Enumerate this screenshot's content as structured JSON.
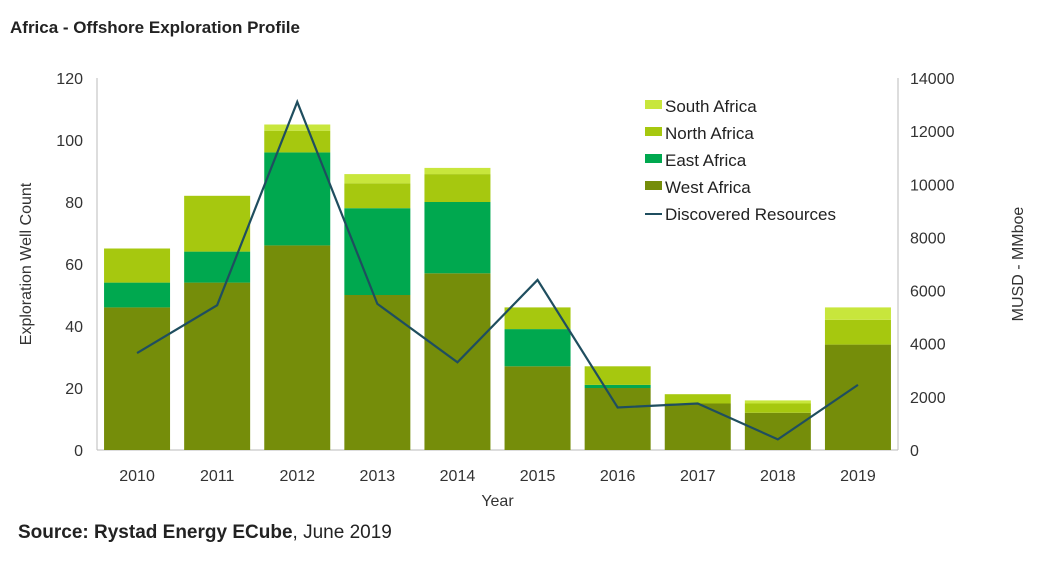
{
  "chart_data": {
    "type": "bar",
    "stacked": true,
    "title": "Africa - Offshore Exploration Profile",
    "source_bold": "Source: Rystad Energy ECube",
    "source_rest": ", June 2019",
    "xlabel": "Year",
    "ylabel": "Exploration Well Count",
    "y2label": "MUSD - MMboe",
    "ylim": [
      0,
      120
    ],
    "y2lim": [
      0,
      14000
    ],
    "yticks": [
      0,
      20,
      40,
      60,
      80,
      100,
      120
    ],
    "y2ticks": [
      0,
      2000,
      4000,
      6000,
      8000,
      10000,
      12000,
      14000
    ],
    "legend_position": "top-right",
    "grid": false,
    "categories": [
      "2010",
      "2011",
      "2012",
      "2013",
      "2014",
      "2015",
      "2016",
      "2017",
      "2018",
      "2019"
    ],
    "series": [
      {
        "name": "West Africa",
        "color": "#758d0a",
        "values": [
          46,
          54,
          66,
          50,
          57,
          27,
          20,
          15,
          12,
          34
        ]
      },
      {
        "name": "East Africa",
        "color": "#00a84f",
        "values": [
          8,
          10,
          30,
          28,
          23,
          12,
          1,
          0,
          0,
          0
        ]
      },
      {
        "name": "North Africa",
        "color": "#a6c80f",
        "values": [
          11,
          18,
          7,
          8,
          9,
          7,
          6,
          3,
          3,
          8
        ]
      },
      {
        "name": "South Africa",
        "color": "#c8e63c",
        "values": [
          0,
          0,
          2,
          3,
          2,
          0,
          0,
          0,
          1,
          4
        ]
      }
    ],
    "line": {
      "name": "Discovered Resources",
      "axis": "right",
      "color": "#1f4e5f",
      "values": [
        3650,
        5450,
        13100,
        5500,
        3300,
        6400,
        1600,
        1750,
        400,
        2450
      ]
    },
    "legend_order": [
      "South Africa",
      "North Africa",
      "East Africa",
      "West Africa",
      "Discovered Resources"
    ]
  }
}
